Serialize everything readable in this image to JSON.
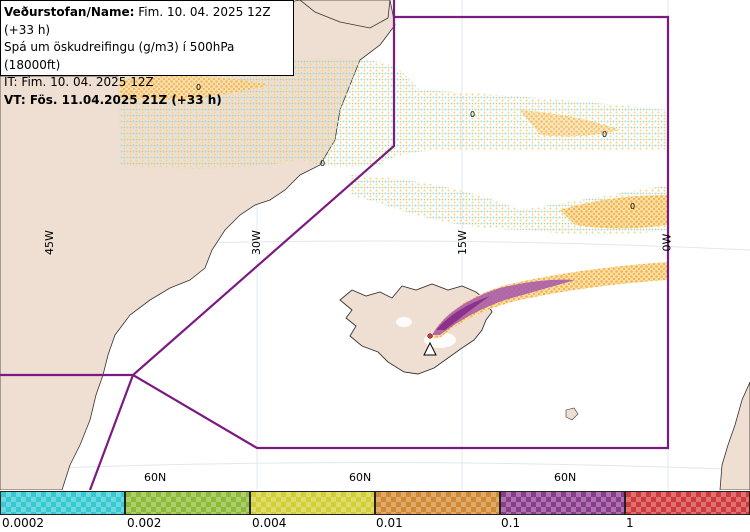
{
  "header": {
    "line1_label": "Veðurstofan/Name:",
    "line1_value": "Fim. 10. 04. 2025 12Z (+33 h)",
    "line2": "Spá um öskudreifingu (g/m3) í 500hPa (18000ft)",
    "line3": "IT: Fim. 10. 04. 2025 12Z",
    "line4_label": "VT:",
    "line4_value": "Fös. 11.04.2025 21Z (+33 h)"
  },
  "map": {
    "longitude_labels": [
      "45W",
      "30W",
      "15W",
      "0W"
    ],
    "latitude_labels": [
      "60N",
      "60N",
      "60N"
    ],
    "contour_zero_label": "0",
    "colors": {
      "land": "#efdfd2",
      "sea": "#ffffff",
      "boundary": "#7b1a80",
      "gridline": "#dfe8ef",
      "coast": "#333333",
      "ash_light": "#f6d57e",
      "ash_orange": "#f5b24a",
      "ash_purple": "#a457ad",
      "ash_cyan": "#8fe3ee"
    }
  },
  "legend": {
    "ticks": [
      "0.0002",
      "0.002",
      "0.004",
      "0.01",
      "0.1",
      "1"
    ],
    "colors": [
      "#35c9d1",
      "#8cbb36",
      "#d1cf33",
      "#d18a33",
      "#8a3c8c",
      "#d13a3a"
    ]
  }
}
